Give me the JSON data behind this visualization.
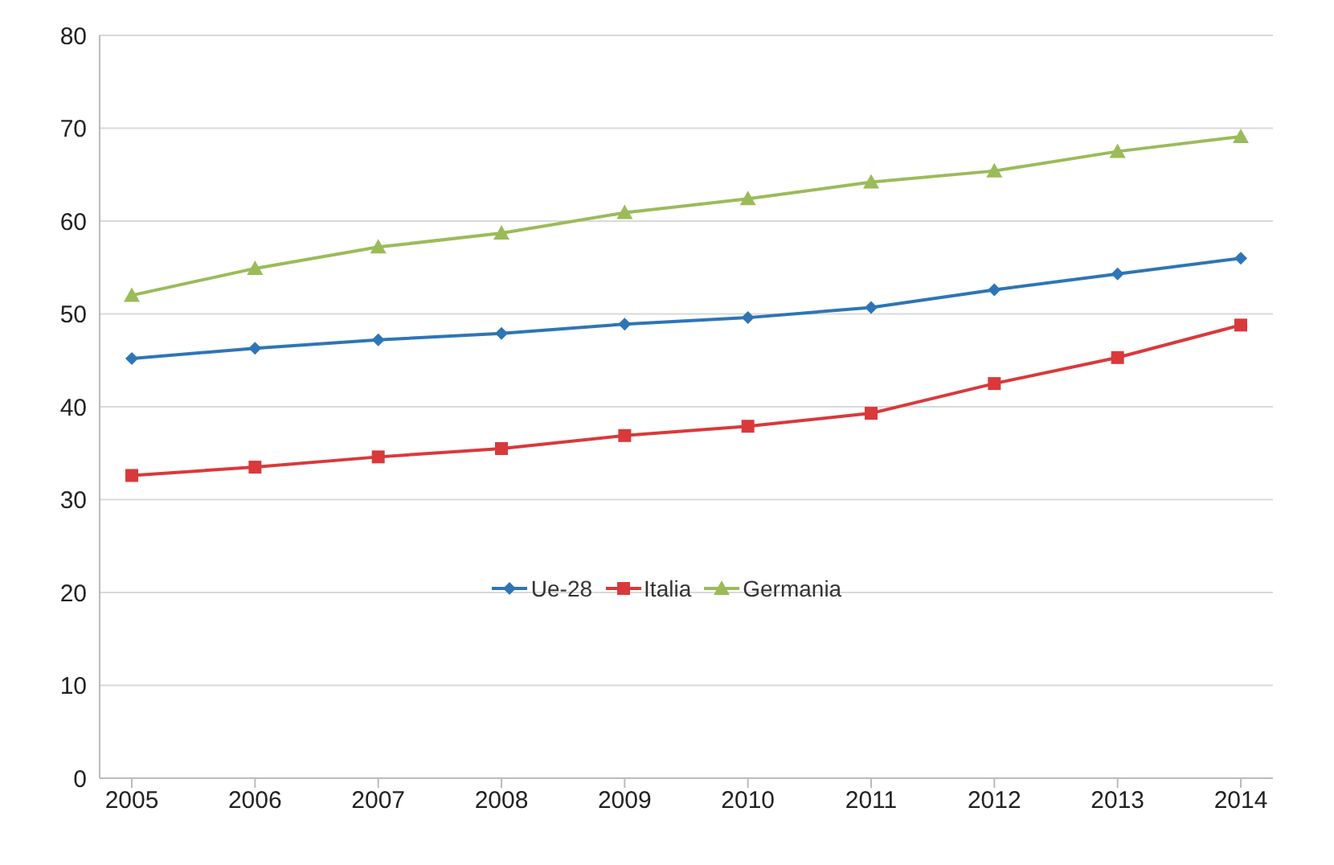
{
  "chart_data": {
    "type": "line",
    "categories": [
      "2005",
      "2006",
      "2007",
      "2008",
      "2009",
      "2010",
      "2011",
      "2012",
      "2013",
      "2014"
    ],
    "series": [
      {
        "name": "Ue-28",
        "color": "#2e75b6",
        "marker": "diamond",
        "values": [
          45.2,
          46.3,
          47.2,
          47.9,
          48.9,
          49.6,
          50.7,
          52.6,
          54.3,
          56
        ]
      },
      {
        "name": "Italia",
        "color": "#d9393b",
        "marker": "square",
        "values": [
          32.6,
          33.5,
          34.6,
          35.5,
          36.9,
          37.9,
          39.3,
          42.5,
          45.3,
          48.8
        ]
      },
      {
        "name": "Germania",
        "color": "#9bbb59",
        "marker": "triangle",
        "values": [
          52,
          54.9,
          57.2,
          58.7,
          60.9,
          62.4,
          64.2,
          65.4,
          67.5,
          69.1
        ]
      }
    ],
    "ylim": [
      0,
      80
    ],
    "yticks": [
      0,
      10,
      20,
      30,
      40,
      50,
      60,
      70,
      80
    ],
    "grid": "y",
    "legend": "center",
    "line_style": "solid"
  }
}
